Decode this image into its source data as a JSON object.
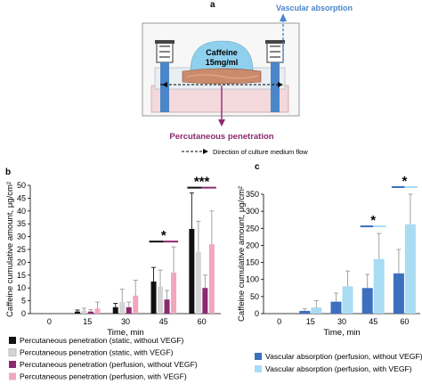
{
  "panel_a": {
    "letter": "a",
    "caffeine_label": "Caffeine",
    "dose_label": "15mg/ml",
    "vascular_label": "Vascular absorption",
    "percutaneous_label": "Percutaneous penetration",
    "flow_label": "Direction of culture medium flow",
    "colors": {
      "vascular": "#4a86c8",
      "percutaneous": "#8b2a6f",
      "caffeine": "#8fd0ee",
      "chamber": "#f3d9dc"
    }
  },
  "chart_data": [
    {
      "type": "bar",
      "panel": "b",
      "categories": [
        "0",
        "15",
        "30",
        "45",
        "60"
      ],
      "xlabel": "Time, min",
      "ylabel": "Caffeine cumulative amount, μg/cm²",
      "ylim": [
        0,
        50
      ],
      "yticks": [
        "0",
        "5",
        "10",
        "15",
        "20",
        "25",
        "30",
        "35",
        "40",
        "45",
        "50"
      ],
      "series": [
        {
          "name": "Percutaneous penetration (static, without VEGF)",
          "color": "#111111",
          "values": [
            0,
            0.8,
            2.5,
            12.5,
            33
          ],
          "errors": [
            0,
            0.6,
            1.5,
            5.5,
            14
          ]
        },
        {
          "name": "Percutaneous penetration (static, with VEGF)",
          "color": "#d4d4d4",
          "values": [
            0,
            1.2,
            4.5,
            10.5,
            24
          ],
          "errors": [
            0,
            0.9,
            5,
            6.5,
            12
          ]
        },
        {
          "name": "Percutaneous penetration (perfusion, without VEGF)",
          "color": "#8b2a6f",
          "values": [
            0,
            0.8,
            2.5,
            5.5,
            10
          ],
          "errors": [
            0,
            0.8,
            2,
            3.5,
            5
          ]
        },
        {
          "name": "Percutaneous penetration (perfusion, with VEGF)",
          "color": "#f2a6bd",
          "values": [
            0,
            2,
            7,
            16,
            27
          ],
          "errors": [
            0,
            2.5,
            6,
            10,
            13
          ]
        }
      ],
      "significance": [
        {
          "category": "45",
          "label": "*",
          "colors": [
            "#111111",
            "#8b2a6f"
          ]
        },
        {
          "category": "60",
          "label": "***",
          "colors": [
            "#111111",
            "#8b2a6f"
          ]
        }
      ]
    },
    {
      "type": "bar",
      "panel": "c",
      "categories": [
        "0",
        "15",
        "30",
        "45",
        "60"
      ],
      "xlabel": "Time, min",
      "ylabel": "Caffeine cumulative amount, μg/cm²",
      "ylim": [
        0,
        350
      ],
      "yticks": [
        "0",
        "50",
        "100",
        "150",
        "200",
        "250",
        "300",
        "350"
      ],
      "series": [
        {
          "name": "Vascular absorption (perfusion, without VEGF)",
          "color": "#3d6fbf",
          "values": [
            0,
            8,
            35,
            75,
            118
          ],
          "errors": [
            0,
            6,
            25,
            40,
            70
          ]
        },
        {
          "name": "Vascular absorption (perfusion, with VEGF)",
          "color": "#a9dcf3",
          "values": [
            0,
            18,
            80,
            160,
            262
          ],
          "errors": [
            0,
            20,
            45,
            75,
            95
          ]
        }
      ],
      "significance": [
        {
          "category": "45",
          "label": "*",
          "colors": [
            "#3d6fbf",
            "#a9dcf3"
          ]
        },
        {
          "category": "60",
          "label": "*",
          "colors": [
            "#3d6fbf",
            "#a9dcf3"
          ]
        }
      ]
    }
  ]
}
